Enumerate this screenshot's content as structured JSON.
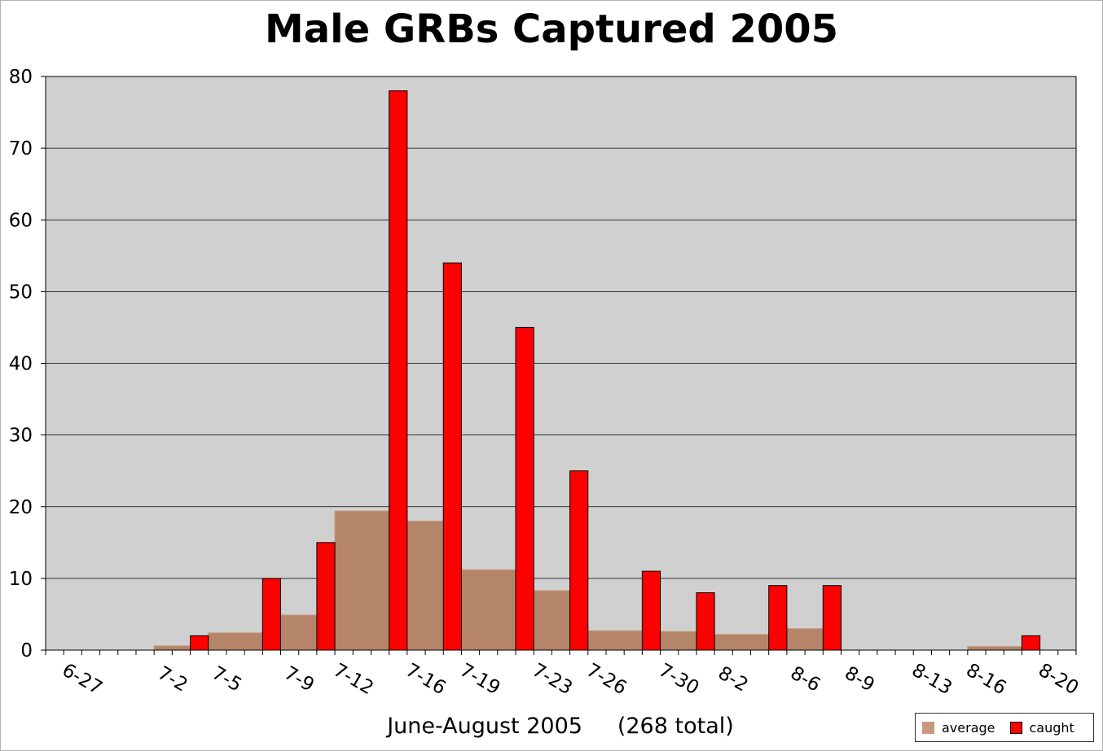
{
  "chart_data": {
    "type": "bar",
    "title": "Male GRBs Captured 2005",
    "xlabel": "June-August 2005     (268 total)",
    "ylabel": "",
    "ylim": [
      0,
      80
    ],
    "yticks": [
      0,
      10,
      20,
      30,
      40,
      50,
      60,
      70,
      80
    ],
    "grid": true,
    "legend_position": "bottom-right",
    "x_tick_labels": [
      "6-27",
      "7-2",
      "7-5",
      "7-9",
      "7-12",
      "7-16",
      "7-19",
      "7-23",
      "7-26",
      "7-30",
      "8-2",
      "8-6",
      "8-9",
      "8-13",
      "8-16",
      "8-20"
    ],
    "series": [
      {
        "name": "average",
        "color": "#c89a80",
        "segments": [
          {
            "from": "7-2",
            "to": "7-4",
            "value": 0.6
          },
          {
            "from": "7-5",
            "to": "7-7",
            "value": 2.4
          },
          {
            "from": "7-9",
            "to": "7-10",
            "value": 4.9
          },
          {
            "from": "7-12",
            "to": "7-14",
            "value": 19.4
          },
          {
            "from": "7-16",
            "to": "7-17",
            "value": 18.0
          },
          {
            "from": "7-19",
            "to": "7-21",
            "value": 11.2
          },
          {
            "from": "7-23",
            "to": "7-24",
            "value": 8.3
          },
          {
            "from": "7-26",
            "to": "7-28",
            "value": 2.7
          },
          {
            "from": "7-30",
            "to": "7-31",
            "value": 2.6
          },
          {
            "from": "8-2",
            "to": "8-4",
            "value": 2.2
          },
          {
            "from": "8-6",
            "to": "8-7",
            "value": 3.0
          },
          {
            "from": "8-16",
            "to": "8-18",
            "value": 0.5
          }
        ]
      },
      {
        "name": "caught",
        "color": "#ff0000",
        "points": [
          {
            "date": "7-4",
            "value": 2
          },
          {
            "date": "7-8",
            "value": 10
          },
          {
            "date": "7-11",
            "value": 15
          },
          {
            "date": "7-15",
            "value": 78
          },
          {
            "date": "7-18",
            "value": 54
          },
          {
            "date": "7-22",
            "value": 45
          },
          {
            "date": "7-25",
            "value": 25
          },
          {
            "date": "7-29",
            "value": 11
          },
          {
            "date": "8-1",
            "value": 8
          },
          {
            "date": "8-5",
            "value": 9
          },
          {
            "date": "8-8",
            "value": 9
          },
          {
            "date": "8-19",
            "value": 2
          }
        ]
      }
    ]
  },
  "legend": {
    "average_label": "average",
    "caught_label": "caught"
  }
}
